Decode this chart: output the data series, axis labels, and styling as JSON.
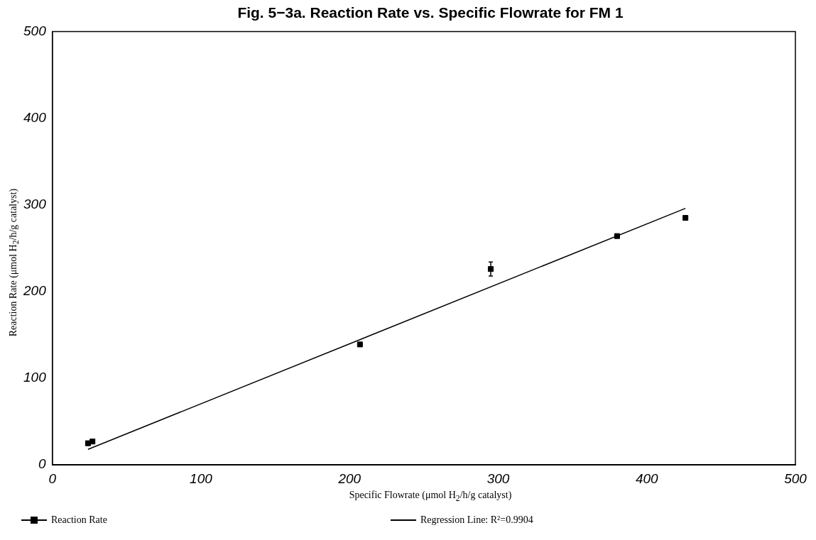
{
  "chart_data": {
    "type": "scatter",
    "title": "Fig. 5−3a.  Reaction Rate vs. Specific Flowrate for FM 1",
    "xlabel": "Specific Flowrate (μmol H$_{2}$/h/g catalyst)",
    "ylabel": "Reaction Rate (μmol H$_{2}$/h/g catalyst)",
    "xlim": [
      0,
      500
    ],
    "xticks": [
      0,
      100,
      200,
      300,
      400,
      500
    ],
    "ylim": [
      0,
      500
    ],
    "yticks": [
      0,
      100,
      200,
      300,
      400,
      500
    ],
    "legend": "bottom",
    "grid": false,
    "series": [
      {
        "name": "Reaction Rate",
        "color": "#000000",
        "marker": "square",
        "x": [
          24,
          27,
          207,
          295,
          380,
          426
        ],
        "values": [
          25,
          27,
          139,
          226,
          264,
          285
        ],
        "errors": [
          null,
          null,
          null,
          [
            218,
            234
          ],
          null,
          null
        ]
      },
      {
        "name": "Regression Line:  R²=0.9904",
        "type": "line",
        "color": "#000000",
        "marker": "none",
        "x": [
          24,
          426
        ],
        "values": [
          18,
          296
        ]
      }
    ]
  }
}
